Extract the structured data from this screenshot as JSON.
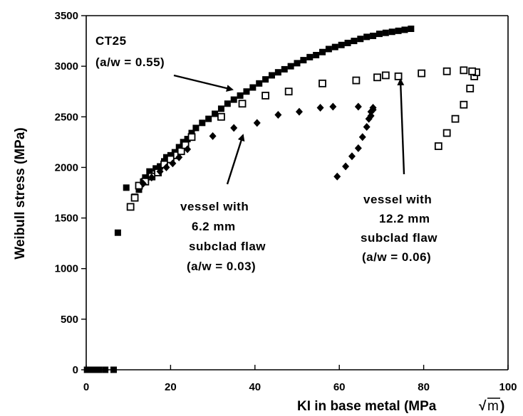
{
  "chart_data": {
    "type": "scatter",
    "title": "",
    "xlabel": "KI in base metal (MPa",
    "xlabel_root": "m",
    "xlabel_close": ")",
    "ylabel": "Weibull stress (MPa)",
    "xlim": [
      0,
      100
    ],
    "ylim": [
      0,
      3500
    ],
    "xticks": [
      0,
      20,
      40,
      60,
      80,
      100
    ],
    "yticks": [
      0,
      500,
      1000,
      1500,
      2000,
      2500,
      3000,
      3500
    ],
    "grid": false,
    "series": [
      {
        "marker": "filled-square",
        "color": "#000000",
        "points": [
          [
            0.2,
            0
          ],
          [
            0.7,
            0
          ],
          [
            1.3,
            0
          ],
          [
            2.0,
            0
          ],
          [
            3.0,
            0
          ],
          [
            4.5,
            0
          ],
          [
            6.5,
            0
          ],
          [
            7.5,
            1355
          ],
          [
            9.5,
            1800
          ],
          [
            11.5,
            1710
          ],
          [
            12.5,
            1780
          ],
          [
            13.5,
            1860
          ],
          [
            14.0,
            1900
          ],
          [
            15.0,
            1960
          ],
          [
            16.5,
            1990
          ],
          [
            17.5,
            2010
          ],
          [
            18.5,
            2060
          ],
          [
            19.0,
            2100
          ],
          [
            20.0,
            2120
          ],
          [
            21.0,
            2150
          ],
          [
            22.0,
            2200
          ],
          [
            23.0,
            2250
          ],
          [
            24.0,
            2280
          ],
          [
            25.0,
            2340
          ],
          [
            26.0,
            2390
          ],
          [
            27.5,
            2440
          ],
          [
            29.0,
            2480
          ],
          [
            30.5,
            2530
          ],
          [
            32.0,
            2580
          ],
          [
            33.5,
            2630
          ],
          [
            35.0,
            2670
          ],
          [
            36.5,
            2710
          ],
          [
            38.0,
            2750
          ],
          [
            39.5,
            2790
          ],
          [
            41.0,
            2830
          ],
          [
            42.5,
            2870
          ],
          [
            44.0,
            2910
          ],
          [
            45.5,
            2940
          ],
          [
            47.0,
            2970
          ],
          [
            48.5,
            3000
          ],
          [
            50.0,
            3030
          ],
          [
            51.5,
            3060
          ],
          [
            53.0,
            3090
          ],
          [
            54.5,
            3110
          ],
          [
            56.0,
            3140
          ],
          [
            57.5,
            3170
          ],
          [
            59.0,
            3190
          ],
          [
            60.5,
            3210
          ],
          [
            62.0,
            3230
          ],
          [
            63.5,
            3250
          ],
          [
            65.0,
            3270
          ],
          [
            66.5,
            3290
          ],
          [
            68.0,
            3300
          ],
          [
            69.5,
            3320
          ],
          [
            71.0,
            3330
          ],
          [
            72.5,
            3340
          ],
          [
            74.0,
            3350
          ],
          [
            75.5,
            3360
          ],
          [
            77.0,
            3370
          ]
        ]
      },
      {
        "marker": "open-square",
        "color": "#000000",
        "points": [
          [
            10.5,
            1610
          ],
          [
            11.5,
            1700
          ],
          [
            12.5,
            1820
          ],
          [
            14.0,
            1860
          ],
          [
            15.5,
            1910
          ],
          [
            17.0,
            1950
          ],
          [
            18.5,
            2030
          ],
          [
            20.0,
            2080
          ],
          [
            21.5,
            2120
          ],
          [
            22.5,
            2160
          ],
          [
            23.5,
            2220
          ],
          [
            25.0,
            2300
          ],
          [
            32.0,
            2500
          ],
          [
            37.0,
            2630
          ],
          [
            42.5,
            2710
          ],
          [
            48.0,
            2750
          ],
          [
            56.0,
            2830
          ],
          [
            64.0,
            2860
          ],
          [
            69.0,
            2890
          ],
          [
            74.0,
            2900
          ],
          [
            83.5,
            2210
          ],
          [
            85.5,
            2340
          ],
          [
            87.5,
            2480
          ],
          [
            89.5,
            2620
          ],
          [
            91.0,
            2780
          ],
          [
            92.0,
            2900
          ],
          [
            92.5,
            2940
          ],
          [
            91.5,
            2950
          ],
          [
            89.5,
            2960
          ],
          [
            85.5,
            2950
          ],
          [
            79.5,
            2930
          ],
          [
            71.0,
            2910
          ]
        ]
      },
      {
        "marker": "filled-diamond",
        "color": "#000000",
        "points": [
          [
            13.5,
            1840
          ],
          [
            15.5,
            1900
          ],
          [
            17.5,
            1960
          ],
          [
            19.0,
            2000
          ],
          [
            20.5,
            2040
          ],
          [
            22.0,
            2100
          ],
          [
            24.0,
            2180
          ],
          [
            30.0,
            2310
          ],
          [
            35.0,
            2390
          ],
          [
            40.5,
            2440
          ],
          [
            45.5,
            2520
          ],
          [
            50.5,
            2550
          ],
          [
            55.5,
            2590
          ],
          [
            58.5,
            2600
          ],
          [
            64.5,
            2600
          ],
          [
            68.0,
            2590
          ],
          [
            67.5,
            2550
          ],
          [
            67.0,
            2480
          ],
          [
            66.5,
            2400
          ],
          [
            65.5,
            2300
          ],
          [
            64.5,
            2190
          ],
          [
            63.0,
            2110
          ],
          [
            61.5,
            2010
          ],
          [
            59.5,
            1910
          ],
          [
            67.5,
            2510
          ],
          [
            68.0,
            2570
          ]
        ]
      }
    ],
    "annotations": [
      {
        "lines": [
          "CT25",
          "(a/w   =   0.55)"
        ]
      },
      {
        "lines": [
          "vessel   with",
          "6.2   mm",
          "subclad  flaw",
          "(a/w   =   0.03)"
        ]
      },
      {
        "lines": [
          "vessel   with",
          "12.2   mm",
          "subclad  flaw",
          "(a/w   =   0.06)"
        ]
      }
    ]
  }
}
